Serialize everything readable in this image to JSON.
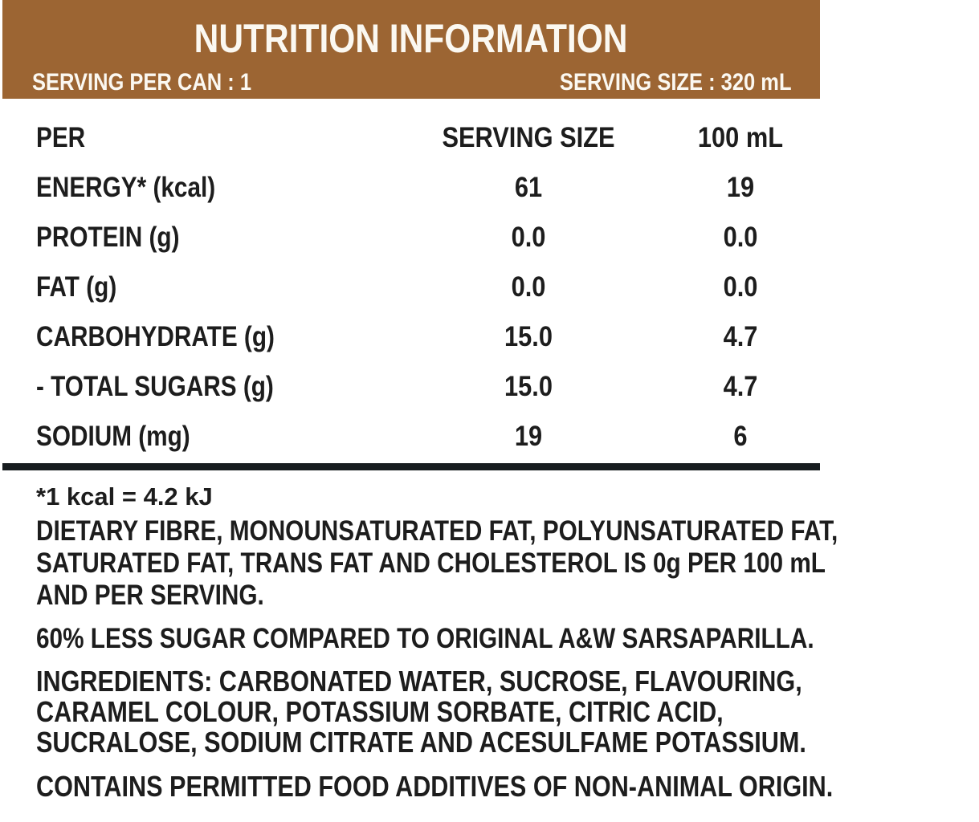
{
  "colors": {
    "header_background": "#9c6533",
    "header_text": "#fbf8f1",
    "body_text": "#1d1d1d",
    "divider": "#171c1f",
    "page_background": "#ffffff"
  },
  "header": {
    "title": "NUTRITION INFORMATION",
    "serving_per_can": "SERVING PER CAN : 1",
    "serving_size": "SERVING SIZE : 320 mL"
  },
  "table": {
    "columns": [
      "PER",
      "SERVING SIZE",
      "100 mL"
    ],
    "rows": [
      {
        "label": "ENERGY* (kcal)",
        "serving": "61",
        "per_100ml": "19"
      },
      {
        "label": "PROTEIN (g)",
        "serving": "0.0",
        "per_100ml": "0.0"
      },
      {
        "label": "FAT (g)",
        "serving": "0.0",
        "per_100ml": "0.0"
      },
      {
        "label": "CARBOHYDRATE (g)",
        "serving": "15.0",
        "per_100ml": "4.7"
      },
      {
        "label": "- TOTAL SUGARS (g)",
        "serving": "15.0",
        "per_100ml": "4.7"
      },
      {
        "label": "SODIUM (mg)",
        "serving": "19",
        "per_100ml": "6"
      }
    ]
  },
  "footnotes": {
    "kcal_note": "*1 kcal = 4.2 kJ",
    "zero_nutrients_lines": [
      "DIETARY FIBRE, MONOUNSATURATED FAT, POLYUNSATURATED FAT,",
      "SATURATED FAT, TRANS FAT AND CHOLESTEROL IS 0g PER 100 mL",
      "AND PER SERVING."
    ],
    "less_sugar_claim": "60% LESS SUGAR COMPARED TO ORIGINAL A&W SARSAPARILLA.",
    "ingredients_lines": [
      "INGREDIENTS: CARBONATED WATER, SUCROSE, FLAVOURING,",
      "CARAMEL COLOUR, POTASSIUM SORBATE, CITRIC ACID,",
      "SUCRALOSE, SODIUM CITRATE AND ACESULFAME POTASSIUM."
    ],
    "additives_note": "CONTAINS PERMITTED FOOD ADDITIVES OF NON-ANIMAL ORIGIN."
  }
}
